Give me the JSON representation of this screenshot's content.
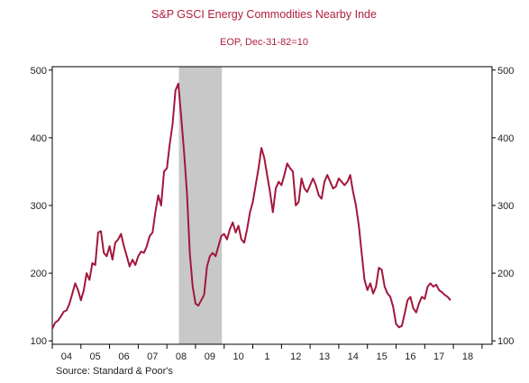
{
  "chart_data": {
    "type": "line",
    "title": "S&P GSCI Energy Commodities Nearby Inde",
    "subtitle": "EOP, Dec-31-82=10",
    "source": "Source:  Standard & Poor's",
    "x_ticks": [
      "04",
      "05",
      "06",
      "07",
      "08",
      "09",
      "10",
      "1",
      "12",
      "13",
      "14",
      "15",
      "16",
      "17",
      "18"
    ],
    "xlim": [
      2003.5,
      2018.85
    ],
    "ylim": [
      95,
      505
    ],
    "y_ticks": [
      "100",
      "200",
      "300",
      "400",
      "500"
    ],
    "y_tick_values": [
      100,
      200,
      300,
      400,
      500
    ],
    "grid": false,
    "line_color": "#a3173c",
    "recession_shading": {
      "start": 2007.92,
      "end": 2009.42,
      "color": "#c8c8c8"
    },
    "series": [
      {
        "x": [
          2003.5,
          2003.6,
          2003.7,
          2003.8,
          2003.9,
          2004.0,
          2004.1,
          2004.2,
          2004.3,
          2004.4,
          2004.5,
          2004.6,
          2004.7,
          2004.8,
          2004.9,
          2005.0,
          2005.1,
          2005.2,
          2005.3,
          2005.4,
          2005.5,
          2005.6,
          2005.7,
          2005.8,
          2005.9,
          2006.0,
          2006.1,
          2006.2,
          2006.3,
          2006.4,
          2006.5,
          2006.6,
          2006.7,
          2006.8,
          2006.9,
          2007.0,
          2007.1,
          2007.2,
          2007.3,
          2007.4,
          2007.5,
          2007.6,
          2007.7,
          2007.8,
          2007.9,
          2008.0,
          2008.1,
          2008.2,
          2008.3,
          2008.4,
          2008.5,
          2008.6,
          2008.7,
          2008.8,
          2008.9,
          2009.0,
          2009.1,
          2009.2,
          2009.3,
          2009.4,
          2009.5,
          2009.6,
          2009.7,
          2009.8,
          2009.9,
          2010.0,
          2010.1,
          2010.2,
          2010.3,
          2010.4,
          2010.5,
          2010.6,
          2010.7,
          2010.8,
          2010.9,
          2011.0,
          2011.1,
          2011.2,
          2011.3,
          2011.4,
          2011.5,
          2011.6,
          2011.7,
          2011.8,
          2011.9,
          2012.0,
          2012.1,
          2012.2,
          2012.3,
          2012.4,
          2012.5,
          2012.6,
          2012.7,
          2012.8,
          2012.9,
          2013.0,
          2013.1,
          2013.2,
          2013.3,
          2013.4,
          2013.5,
          2013.6,
          2013.7,
          2013.8,
          2013.9,
          2014.0,
          2014.1,
          2014.2,
          2014.3,
          2014.4,
          2014.5,
          2014.6,
          2014.7,
          2014.8,
          2014.9,
          2015.0,
          2015.1,
          2015.2,
          2015.3,
          2015.4,
          2015.5,
          2015.6,
          2015.7,
          2015.8,
          2015.9,
          2016.0,
          2016.1,
          2016.2,
          2016.3,
          2016.4,
          2016.5,
          2016.6,
          2016.7,
          2016.8,
          2016.9,
          2017.0,
          2017.1,
          2017.2,
          2017.3,
          2017.4
        ],
        "values": [
          118,
          127,
          130,
          136,
          143,
          145,
          155,
          170,
          185,
          175,
          160,
          175,
          200,
          190,
          215,
          212,
          260,
          262,
          230,
          225,
          240,
          220,
          245,
          250,
          258,
          240,
          225,
          210,
          220,
          212,
          225,
          232,
          230,
          240,
          255,
          260,
          290,
          315,
          300,
          350,
          355,
          390,
          420,
          470,
          480,
          430,
          380,
          320,
          230,
          180,
          155,
          152,
          160,
          168,
          210,
          225,
          230,
          225,
          240,
          255,
          258,
          250,
          265,
          275,
          260,
          270,
          250,
          245,
          265,
          290,
          305,
          330,
          355,
          385,
          370,
          345,
          320,
          290,
          325,
          335,
          330,
          345,
          362,
          355,
          350,
          300,
          305,
          340,
          325,
          320,
          330,
          340,
          330,
          315,
          310,
          335,
          345,
          335,
          325,
          328,
          340,
          335,
          330,
          335,
          345,
          320,
          300,
          270,
          230,
          190,
          175,
          185,
          170,
          180,
          208,
          205,
          180,
          170,
          165,
          150,
          125,
          120,
          122,
          140,
          160,
          165,
          148,
          142,
          155,
          165,
          162,
          180,
          185,
          180,
          183,
          175,
          172,
          168,
          165,
          160
        ]
      }
    ]
  }
}
